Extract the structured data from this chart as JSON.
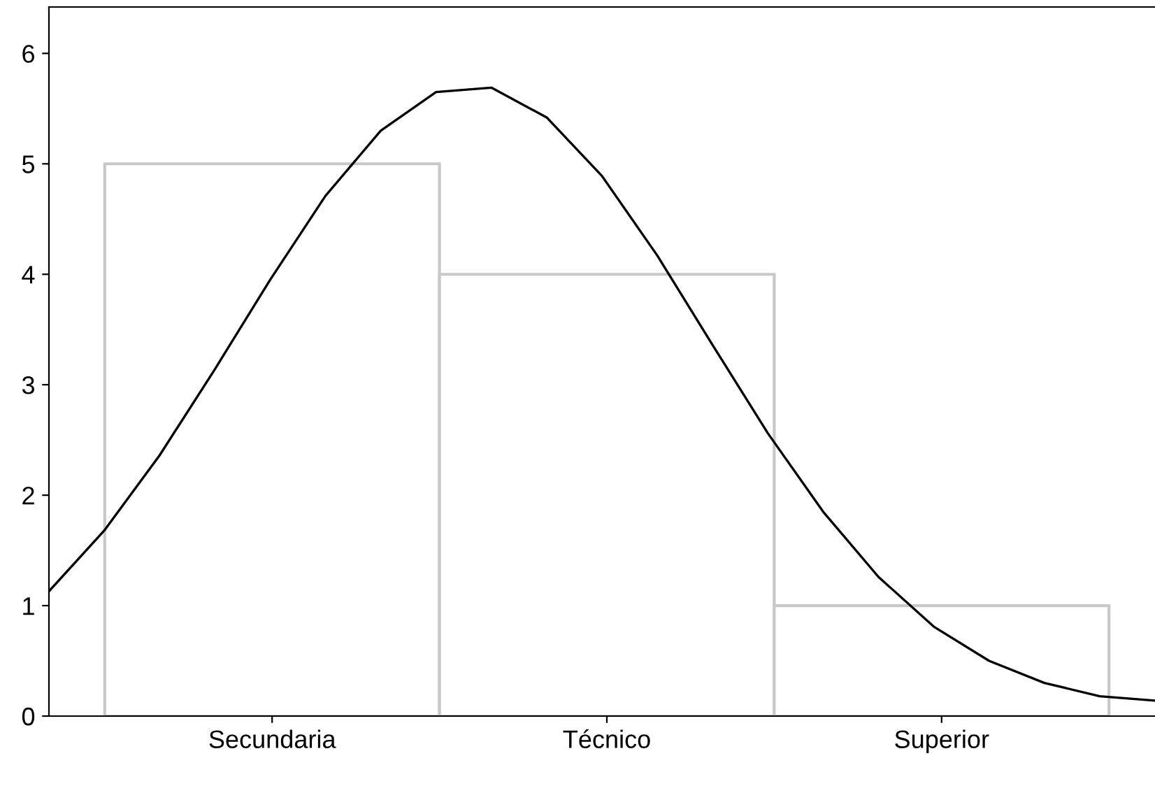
{
  "chart_data": [
    {
      "type": "bar",
      "categories": [
        "Secundaria",
        "Técnico",
        "Superior"
      ],
      "values": [
        5,
        4,
        1
      ],
      "color": "#c8c8c8",
      "ylim": [
        0,
        6.42
      ],
      "yticks": [
        0,
        1,
        2,
        3,
        4,
        5,
        6
      ],
      "grid": false
    },
    {
      "type": "line",
      "categories": [
        null,
        null,
        null,
        null,
        null,
        null,
        null,
        null,
        null,
        null,
        null,
        null,
        null,
        null,
        null,
        null,
        null,
        null,
        null,
        null,
        null
      ],
      "values": [
        1.13,
        1.68,
        2.36,
        3.14,
        3.95,
        4.71,
        5.3,
        5.65,
        5.69,
        5.42,
        4.89,
        4.17,
        3.36,
        2.56,
        1.85,
        1.26,
        0.81,
        0.5,
        0.3,
        0.18,
        0.14
      ],
      "color": "#000000",
      "ylim": [
        0,
        6.42
      ],
      "yticks": [
        0,
        1,
        2,
        3,
        4,
        5,
        6
      ],
      "tick_labels": false,
      "grid": false
    }
  ]
}
